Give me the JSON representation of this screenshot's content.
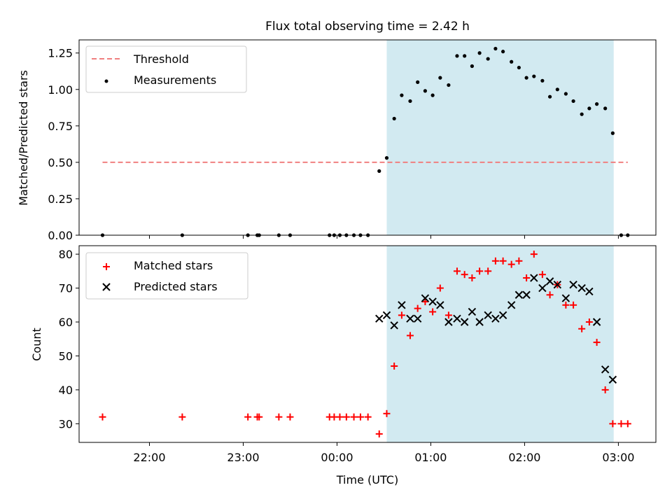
{
  "chart_data": [
    {
      "type": "scatter",
      "title": "Flux total observing time = 2.42 h",
      "ylabel": "Matched/Predicted stars",
      "xlabel": "",
      "ylim": [
        0,
        1.34
      ],
      "y_ticks": [
        "0.00",
        "0.25",
        "0.50",
        "0.75",
        "1.00",
        "1.25"
      ],
      "y_tick_values": [
        0,
        0.25,
        0.5,
        0.75,
        1.0,
        1.25
      ],
      "shaded_span_hours": [
        0.53,
        2.95
      ],
      "shaded_color": "#add8e6",
      "legend_position": "upper-left",
      "threshold": {
        "name": "Threshold",
        "value": 0.5,
        "x_range": [
          -2.5,
          3.1
        ],
        "color": "#f08080"
      },
      "series": [
        {
          "name": "Measurements",
          "color": "#000000",
          "x": [
            -2.5,
            -1.65,
            -0.95,
            -0.85,
            -0.83,
            -0.62,
            -0.5,
            -0.08,
            -0.03,
            0.03,
            0.1,
            0.18,
            0.25,
            0.33,
            0.45,
            0.53,
            0.61,
            0.69,
            0.78,
            0.86,
            0.94,
            1.02,
            1.1,
            1.19,
            1.28,
            1.36,
            1.44,
            1.52,
            1.61,
            1.69,
            1.77,
            1.86,
            1.94,
            2.02,
            2.1,
            2.19,
            2.27,
            2.35,
            2.44,
            2.52,
            2.61,
            2.69,
            2.77,
            2.86,
            2.94,
            3.03,
            3.1
          ],
          "y": [
            0,
            0,
            0,
            0,
            0,
            0,
            0,
            0,
            0,
            0,
            0,
            0,
            0,
            0,
            0.44,
            0.53,
            0.8,
            0.96,
            0.92,
            1.05,
            0.99,
            0.96,
            1.08,
            1.03,
            1.23,
            1.23,
            1.16,
            1.25,
            1.21,
            1.28,
            1.26,
            1.19,
            1.15,
            1.08,
            1.09,
            1.06,
            0.95,
            1.0,
            0.97,
            0.92,
            0.83,
            0.87,
            0.9,
            0.87,
            0.7,
            0,
            0
          ]
        }
      ]
    },
    {
      "type": "scatter",
      "title": "",
      "xlabel": "Time (UTC)",
      "ylabel": "Count",
      "ylim": [
        24.5,
        82.5
      ],
      "xlim": [
        -2.75,
        3.4
      ],
      "y_ticks": [
        "30",
        "40",
        "50",
        "60",
        "70",
        "80"
      ],
      "y_tick_values": [
        30,
        40,
        50,
        60,
        70,
        80
      ],
      "x_ticks": [
        "22:00",
        "23:00",
        "00:00",
        "01:00",
        "02:00",
        "03:00"
      ],
      "x_tick_values": [
        -2,
        -1,
        0,
        1,
        2,
        3
      ],
      "shaded_span_hours": [
        0.53,
        2.95
      ],
      "shaded_color": "#add8e6",
      "legend_position": "upper-left",
      "series": [
        {
          "name": "Matched stars",
          "marker": "+",
          "color": "#ff0000",
          "x": [
            -2.5,
            -1.65,
            -0.95,
            -0.85,
            -0.83,
            -0.62,
            -0.5,
            -0.08,
            -0.03,
            0.03,
            0.1,
            0.18,
            0.25,
            0.33,
            0.45,
            0.53,
            0.61,
            0.69,
            0.78,
            0.86,
            0.94,
            1.02,
            1.1,
            1.19,
            1.28,
            1.36,
            1.44,
            1.52,
            1.61,
            1.69,
            1.77,
            1.86,
            1.94,
            2.02,
            2.1,
            2.19,
            2.27,
            2.35,
            2.44,
            2.52,
            2.61,
            2.69,
            2.77,
            2.86,
            2.94,
            3.03,
            3.1
          ],
          "y": [
            32,
            32,
            32,
            32,
            32,
            32,
            32,
            32,
            32,
            32,
            32,
            32,
            32,
            32,
            27,
            33,
            47,
            62,
            56,
            64,
            66,
            63,
            70,
            62,
            75,
            74,
            73,
            75,
            75,
            78,
            78,
            77,
            78,
            73,
            80,
            74,
            68,
            71,
            65,
            65,
            58,
            60,
            54,
            40,
            30,
            30,
            30
          ]
        },
        {
          "name": "Predicted stars",
          "marker": "x",
          "color": "#000000",
          "x": [
            0.45,
            0.53,
            0.61,
            0.69,
            0.78,
            0.86,
            0.94,
            1.02,
            1.1,
            1.19,
            1.28,
            1.36,
            1.44,
            1.52,
            1.61,
            1.69,
            1.77,
            1.86,
            1.94,
            2.02,
            2.1,
            2.19,
            2.27,
            2.35,
            2.44,
            2.52,
            2.61,
            2.69,
            2.77,
            2.86,
            2.94
          ],
          "y": [
            61,
            62,
            59,
            65,
            61,
            61,
            67,
            66,
            65,
            60,
            61,
            60,
            63,
            60,
            62,
            61,
            62,
            65,
            68,
            68,
            73,
            70,
            72,
            71,
            67,
            71,
            70,
            69,
            60,
            46,
            43
          ]
        }
      ]
    }
  ]
}
